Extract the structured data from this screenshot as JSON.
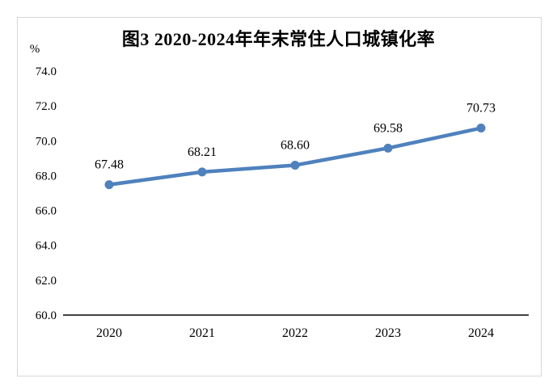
{
  "chart_data": {
    "type": "line",
    "title": "图3 2020-2024年年末常住人口城镇化率",
    "unit_label": "%",
    "categories": [
      "2020",
      "2021",
      "2022",
      "2023",
      "2024"
    ],
    "values": [
      67.48,
      68.21,
      68.6,
      69.58,
      70.73
    ],
    "data_labels": [
      "67.48",
      "68.21",
      "68.60",
      "69.58",
      "70.73"
    ],
    "ylim": [
      60.0,
      74.0
    ],
    "ytick_step": 2.0,
    "ytick_labels": [
      "74.0",
      "72.0",
      "70.0",
      "68.0",
      "66.0",
      "64.0",
      "62.0",
      "60.0"
    ],
    "grid": false,
    "legend": "none",
    "colors": {
      "line": "#4F81BD",
      "marker": "#4F81BD",
      "axis": "#000000",
      "text": "#000000",
      "frame_border": "#D6D6D6",
      "background": "#FFFFFF"
    }
  }
}
